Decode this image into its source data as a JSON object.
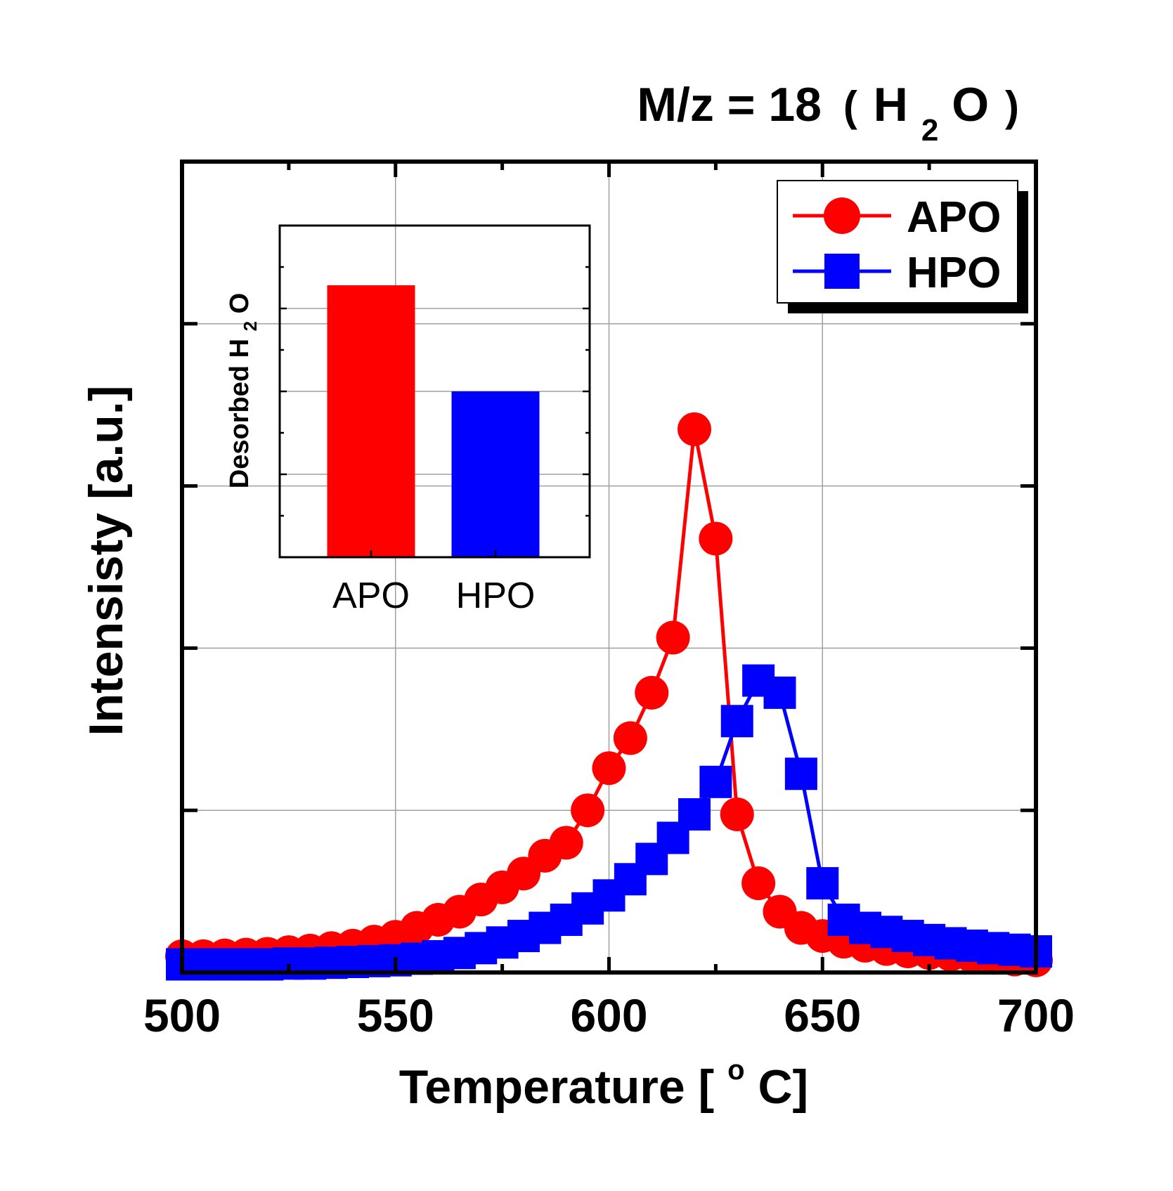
{
  "chart_data": [
    {
      "type": "line",
      "title": {
        "main": "M/z = 18",
        "open_paren": "(",
        "formula_h": "H",
        "formula_sub": "2",
        "formula_o": "O",
        "close_paren": ")"
      },
      "xlabel": {
        "before": "Temperature [",
        "degree": "o",
        "after": "C]"
      },
      "ylabel": "Intensisty [a.u.]",
      "xlim": [
        500,
        700
      ],
      "ylim": [
        0,
        100
      ],
      "x_ticks": [
        "500",
        "550",
        "600",
        "650",
        "700"
      ],
      "x_tick_values": [
        500,
        550,
        600,
        650,
        700
      ],
      "y_tick_values": [
        20,
        40,
        60,
        80
      ],
      "y_tick_labels_shown": false,
      "grid": true,
      "legend_position": "top-right",
      "series": [
        {
          "name": "APO",
          "color": "#ff0000",
          "marker": "circle",
          "x": [
            500,
            505,
            510,
            515,
            520,
            525,
            530,
            535,
            540,
            545,
            550,
            555,
            560,
            565,
            570,
            575,
            580,
            585,
            590,
            595,
            600,
            605,
            610,
            615,
            620,
            625,
            630,
            635,
            640,
            645,
            650,
            655,
            660,
            665,
            670,
            675,
            680,
            685,
            690,
            695,
            700
          ],
          "y": [
            2.0,
            2.0,
            2.1,
            2.2,
            2.3,
            2.5,
            2.7,
            3.0,
            3.3,
            3.8,
            4.4,
            5.5,
            6.5,
            7.5,
            9.0,
            10.5,
            12.2,
            14.4,
            16.0,
            20.0,
            25.2,
            28.9,
            34.5,
            41.3,
            67.0,
            53.5,
            19.5,
            11.0,
            7.5,
            5.5,
            4.5,
            3.8,
            3.3,
            2.9,
            2.6,
            2.4,
            2.2,
            2.0,
            1.8,
            1.6,
            1.5
          ]
        },
        {
          "name": "HPO",
          "color": "#0000ff",
          "marker": "square",
          "x": [
            500,
            505,
            510,
            515,
            520,
            525,
            530,
            535,
            540,
            545,
            550,
            555,
            560,
            565,
            570,
            575,
            580,
            585,
            590,
            595,
            600,
            605,
            610,
            615,
            620,
            625,
            630,
            635,
            640,
            645,
            650,
            655,
            660,
            665,
            670,
            675,
            680,
            685,
            690,
            695,
            700
          ],
          "y": [
            1.0,
            1.0,
            1.0,
            1.0,
            1.0,
            1.1,
            1.1,
            1.2,
            1.3,
            1.4,
            1.5,
            1.7,
            2.0,
            2.4,
            3.0,
            3.7,
            4.5,
            5.5,
            6.5,
            7.9,
            9.5,
            11.5,
            14.0,
            16.6,
            19.5,
            23.5,
            31.0,
            36.0,
            34.5,
            24.5,
            11.0,
            6.5,
            5.5,
            5.0,
            4.5,
            4.0,
            3.6,
            3.3,
            3.0,
            2.8,
            2.6
          ]
        }
      ]
    },
    {
      "type": "bar",
      "ylabel": {
        "before": "Desorbed H",
        "sub": "2",
        "after": "O"
      },
      "categories": [
        "APO",
        "HPO"
      ],
      "values": [
        82,
        50
      ],
      "colors": [
        "#ff0000",
        "#0000ff"
      ],
      "ylim": [
        0,
        100
      ],
      "y_tick_values": [
        25,
        50,
        75
      ],
      "grid": true,
      "y_tick_labels_shown": false
    }
  ]
}
